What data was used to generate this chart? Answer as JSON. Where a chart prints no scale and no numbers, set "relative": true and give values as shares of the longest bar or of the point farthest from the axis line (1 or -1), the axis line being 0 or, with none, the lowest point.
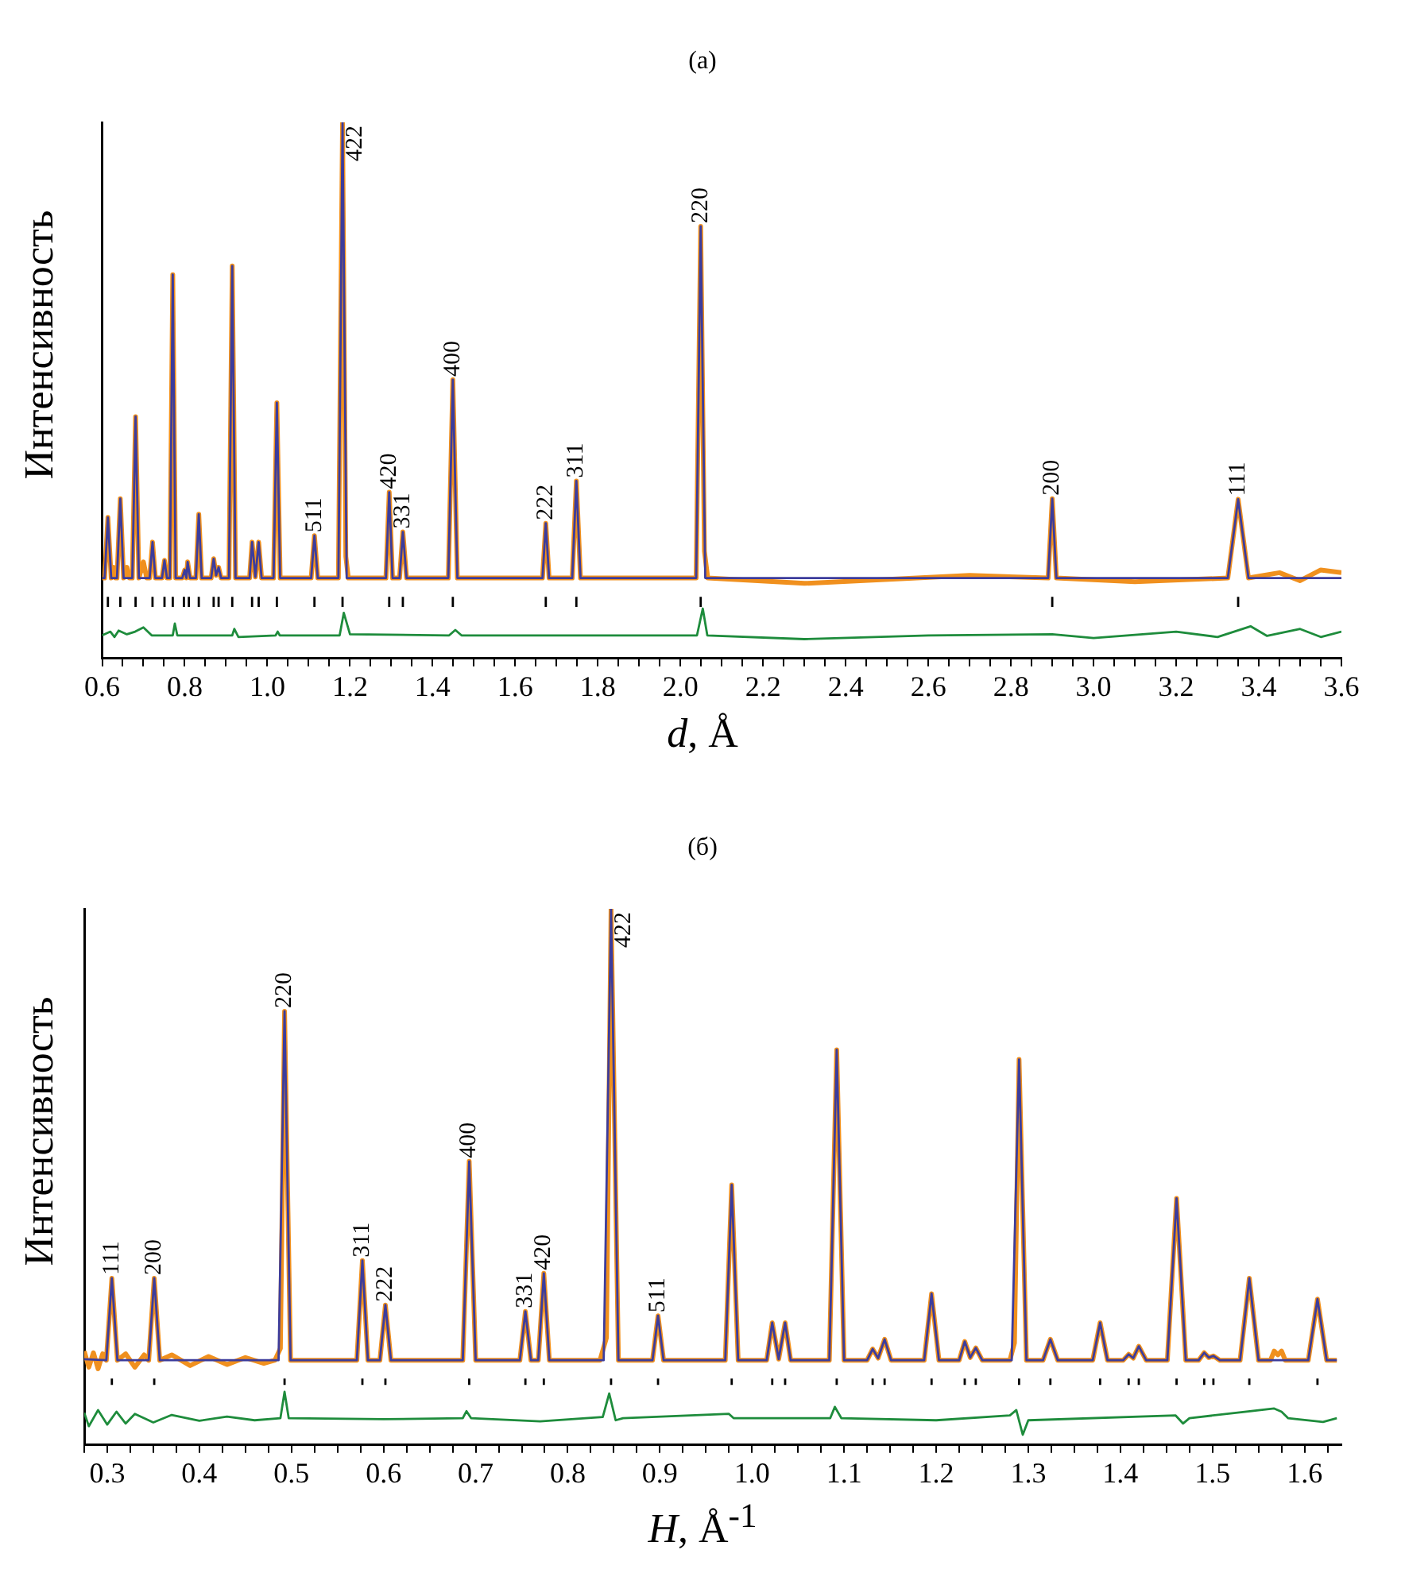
{
  "chart_data": [
    {
      "type": "line",
      "title": "(a)",
      "xlabel": "d, Å",
      "ylabel": "Интенсивность",
      "relative": true,
      "legend": false,
      "grid": false,
      "marker": "none",
      "line_style": "solid",
      "xlim": [
        0.6,
        3.6
      ],
      "xticks": [
        0.6,
        {
          "value": 0.65,
          "label": null
        },
        {
          "value": 0.7,
          "label": null
        },
        {
          "value": 0.75,
          "label": null
        },
        0.8,
        {
          "value": 0.85,
          "label": null
        },
        {
          "value": 0.9,
          "label": null
        },
        {
          "value": 0.95,
          "label": null
        },
        {
          "value": 1.0,
          "label": "1.0"
        },
        {
          "value": 1.05,
          "label": null
        },
        {
          "value": 1.1,
          "label": null
        },
        {
          "value": 1.15,
          "label": null
        },
        1.2,
        {
          "value": 1.25,
          "label": null
        },
        {
          "value": 1.3,
          "label": null
        },
        {
          "value": 1.35,
          "label": null
        },
        1.4,
        {
          "value": 1.45,
          "label": null
        },
        {
          "value": 1.5,
          "label": null
        },
        {
          "value": 1.55,
          "label": null
        },
        1.6,
        {
          "value": 1.65,
          "label": null
        },
        {
          "value": 1.7,
          "label": null
        },
        {
          "value": 1.75,
          "label": null
        },
        1.8,
        {
          "value": 1.85,
          "label": null
        },
        {
          "value": 1.9,
          "label": null
        },
        {
          "value": 1.95,
          "label": null
        },
        {
          "value": 2.0,
          "label": "2.0"
        },
        {
          "value": 2.05,
          "label": null
        },
        {
          "value": 2.1,
          "label": null
        },
        {
          "value": 2.15,
          "label": null
        },
        2.2,
        {
          "value": 2.25,
          "label": null
        },
        {
          "value": 2.3,
          "label": null
        },
        {
          "value": 2.35,
          "label": null
        },
        2.4,
        {
          "value": 2.45,
          "label": null
        },
        {
          "value": 2.5,
          "label": null
        },
        {
          "value": 2.55,
          "label": null
        },
        2.6,
        {
          "value": 2.65,
          "label": null
        },
        {
          "value": 2.7,
          "label": null
        },
        {
          "value": 2.75,
          "label": null
        },
        2.8,
        {
          "value": 2.85,
          "label": null
        },
        {
          "value": 2.9,
          "label": null
        },
        {
          "value": 2.95,
          "label": null
        },
        {
          "value": 3.0,
          "label": "3.0"
        },
        {
          "value": 3.05,
          "label": null
        },
        {
          "value": 3.1,
          "label": null
        },
        {
          "value": 3.15,
          "label": null
        },
        3.2,
        {
          "value": 3.25,
          "label": null
        },
        {
          "value": 3.3,
          "label": null
        },
        {
          "value": 3.35,
          "label": null
        },
        3.4,
        {
          "value": 3.45,
          "label": null
        },
        {
          "value": 3.5,
          "label": null
        },
        {
          "value": 3.55,
          "label": null
        },
        3.6
      ],
      "series": [
        {
          "type": "line",
          "color": "#f0901e",
          "x": [
            0.6,
            0.606,
            0.614,
            0.622,
            0.628,
            0.632,
            0.636,
            0.644,
            0.652,
            0.66,
            0.666,
            0.673,
            0.681,
            0.689,
            0.7,
            0.708,
            0.715,
            0.722,
            0.729,
            0.745,
            0.751,
            0.757,
            0.764,
            0.771,
            0.778,
            0.794,
            0.8,
            0.804,
            0.807,
            0.813,
            0.827,
            0.834,
            0.841,
            0.864,
            0.87,
            0.876,
            0.882,
            0.888,
            0.907,
            0.915,
            0.923,
            0.957,
            0.963,
            0.971,
            0.979,
            0.986,
            1.015,
            1.023,
            1.031,
            1.106,
            1.114,
            1.122,
            1.172,
            1.182,
            1.19,
            1.196,
            1.287,
            1.295,
            1.303,
            1.32,
            1.328,
            1.337,
            1.438,
            1.449,
            1.46,
            1.666,
            1.674,
            1.682,
            1.738,
            1.748,
            1.758,
            2.038,
            2.049,
            2.058,
            2.066,
            2.3,
            2.7,
            2.89,
            2.9,
            2.91,
            3.1,
            3.325,
            3.35,
            3.375,
            3.45,
            3.5,
            3.55,
            3.6
          ],
          "values": [
            0.15,
            0.15,
            0.263,
            0.15,
            0.17,
            0.15,
            0.15,
            0.298,
            0.15,
            0.17,
            0.15,
            0.15,
            0.451,
            0.15,
            0.18,
            0.15,
            0.15,
            0.217,
            0.15,
            0.15,
            0.183,
            0.15,
            0.15,
            0.716,
            0.15,
            0.15,
            0.165,
            0.15,
            0.18,
            0.15,
            0.15,
            0.269,
            0.15,
            0.15,
            0.186,
            0.155,
            0.17,
            0.15,
            0.15,
            0.732,
            0.15,
            0.15,
            0.217,
            0.152,
            0.217,
            0.15,
            0.15,
            0.477,
            0.15,
            0.15,
            0.229,
            0.15,
            0.15,
            1.0,
            0.19,
            0.15,
            0.15,
            0.31,
            0.15,
            0.15,
            0.236,
            0.15,
            0.15,
            0.52,
            0.15,
            0.15,
            0.252,
            0.15,
            0.15,
            0.331,
            0.15,
            0.15,
            0.806,
            0.2,
            0.15,
            0.14,
            0.155,
            0.15,
            0.298,
            0.15,
            0.143,
            0.15,
            0.297,
            0.15,
            0.16,
            0.145,
            0.165,
            0.16
          ]
        },
        {
          "type": "line",
          "color": "#3c3c9c",
          "x": [
            0.6,
            0.606,
            0.614,
            0.622,
            0.636,
            0.644,
            0.652,
            0.673,
            0.681,
            0.689,
            0.715,
            0.722,
            0.729,
            0.745,
            0.751,
            0.757,
            0.764,
            0.771,
            0.778,
            0.794,
            0.8,
            0.804,
            0.807,
            0.813,
            0.827,
            0.834,
            0.841,
            0.864,
            0.87,
            0.876,
            0.882,
            0.888,
            0.907,
            0.915,
            0.923,
            0.957,
            0.963,
            0.971,
            0.979,
            0.986,
            1.015,
            1.023,
            1.031,
            1.106,
            1.114,
            1.122,
            1.172,
            1.182,
            1.192,
            1.287,
            1.295,
            1.303,
            1.32,
            1.328,
            1.337,
            1.438,
            1.449,
            1.46,
            1.666,
            1.674,
            1.682,
            1.738,
            1.748,
            1.758,
            2.038,
            2.049,
            2.06,
            2.89,
            2.9,
            2.91,
            3.325,
            3.35,
            3.375,
            3.6
          ],
          "values": [
            0.15,
            0.15,
            0.263,
            0.15,
            0.15,
            0.298,
            0.15,
            0.15,
            0.451,
            0.15,
            0.15,
            0.217,
            0.15,
            0.15,
            0.183,
            0.15,
            0.15,
            0.716,
            0.15,
            0.15,
            0.165,
            0.15,
            0.18,
            0.15,
            0.15,
            0.269,
            0.15,
            0.15,
            0.186,
            0.155,
            0.17,
            0.15,
            0.15,
            0.732,
            0.15,
            0.15,
            0.217,
            0.152,
            0.217,
            0.15,
            0.15,
            0.477,
            0.15,
            0.15,
            0.229,
            0.15,
            0.15,
            1.0,
            0.15,
            0.15,
            0.31,
            0.15,
            0.15,
            0.236,
            0.15,
            0.15,
            0.52,
            0.15,
            0.15,
            0.252,
            0.15,
            0.15,
            0.331,
            0.15,
            0.15,
            0.806,
            0.15,
            0.15,
            0.298,
            0.15,
            0.15,
            0.297,
            0.15,
            0.15
          ]
        },
        {
          "type": "line",
          "color": "#1e8c3c",
          "x": [
            0.6,
            0.62,
            0.63,
            0.64,
            0.66,
            0.68,
            0.7,
            0.72,
            0.771,
            0.776,
            0.782,
            0.915,
            0.92,
            0.93,
            1.02,
            1.025,
            1.03,
            1.175,
            1.185,
            1.2,
            1.44,
            1.455,
            1.47,
            2.04,
            2.054,
            2.065,
            2.3,
            2.6,
            2.9,
            3.0,
            3.2,
            3.3,
            3.38,
            3.42,
            3.5,
            3.55,
            3.6
          ],
          "values": [
            0.043,
            0.05,
            0.04,
            0.052,
            0.045,
            0.05,
            0.058,
            0.043,
            0.043,
            0.065,
            0.043,
            0.043,
            0.055,
            0.04,
            0.043,
            0.05,
            0.043,
            0.043,
            0.085,
            0.045,
            0.043,
            0.053,
            0.043,
            0.043,
            0.093,
            0.043,
            0.036,
            0.043,
            0.045,
            0.038,
            0.05,
            0.04,
            0.06,
            0.042,
            0.055,
            0.04,
            0.05
          ]
        },
        {
          "type": "line",
          "color": "#000000",
          "x": [
            0.614,
            0.614,
            null,
            0.644,
            0.644,
            null,
            0.681,
            0.681,
            null,
            0.722,
            0.722,
            null,
            0.751,
            0.751,
            null,
            0.771,
            0.771,
            null,
            0.798,
            0.798,
            null,
            0.81,
            0.81,
            null,
            0.834,
            0.834,
            null,
            0.87,
            0.87,
            null,
            0.882,
            0.882,
            null,
            0.915,
            0.915,
            null,
            0.963,
            0.963,
            null,
            0.979,
            0.979,
            null,
            1.023,
            1.023,
            null,
            1.114,
            1.114,
            null,
            1.182,
            1.182,
            null,
            1.295,
            1.295,
            null,
            1.328,
            1.328,
            null,
            1.449,
            1.449,
            null,
            1.674,
            1.674,
            null,
            1.748,
            1.748,
            null,
            2.049,
            2.049,
            null,
            2.9,
            2.9,
            null,
            3.35,
            3.35
          ],
          "values": [
            0.096,
            0.115,
            null,
            0.096,
            0.115,
            null,
            0.096,
            0.115,
            null,
            0.096,
            0.115,
            null,
            0.096,
            0.115,
            null,
            0.096,
            0.115,
            null,
            0.096,
            0.115,
            null,
            0.096,
            0.115,
            null,
            0.096,
            0.115,
            null,
            0.096,
            0.115,
            null,
            0.096,
            0.115,
            null,
            0.096,
            0.115,
            null,
            0.096,
            0.115,
            null,
            0.096,
            0.115,
            null,
            0.096,
            0.115,
            null,
            0.096,
            0.115,
            null,
            0.096,
            0.115,
            null,
            0.096,
            0.115,
            null,
            0.096,
            0.115,
            null,
            0.096,
            0.115,
            null,
            0.096,
            0.115,
            null,
            0.096,
            0.115,
            null,
            0.096,
            0.115,
            null,
            0.096,
            0.115,
            null,
            0.096,
            0.115
          ]
        }
      ],
      "annotations": [
        {
          "text": "511",
          "x": 1.114,
          "y": 0.229
        },
        {
          "text": "422",
          "x": 1.182,
          "y": 1.0
        },
        {
          "text": "420",
          "x": 1.295,
          "y": 0.31
        },
        {
          "text": "331",
          "x": 1.328,
          "y": 0.236
        },
        {
          "text": "400",
          "x": 1.449,
          "y": 0.52
        },
        {
          "text": "222",
          "x": 1.674,
          "y": 0.252
        },
        {
          "text": "311",
          "x": 1.748,
          "y": 0.331
        },
        {
          "text": "220",
          "x": 2.049,
          "y": 0.806
        },
        {
          "text": "200",
          "x": 2.9,
          "y": 0.298
        },
        {
          "text": "111",
          "x": 3.35,
          "y": 0.297
        }
      ]
    },
    {
      "type": "line",
      "title": "(б)",
      "xlabel": "H, Å$^{-1}$",
      "ylabel": "Интенсивность",
      "relative": true,
      "legend": false,
      "grid": false,
      "marker": "none",
      "line_style": "solid",
      "xlim": [
        0.275,
        1.64
      ],
      "xticks": [
        {
          "value": 0.275,
          "label": null
        },
        0.3,
        {
          "value": 0.325,
          "label": null
        },
        {
          "value": 0.35,
          "label": null
        },
        {
          "value": 0.375,
          "label": null
        },
        0.4,
        {
          "value": 0.425,
          "label": null
        },
        {
          "value": 0.45,
          "label": null
        },
        {
          "value": 0.475,
          "label": null
        },
        0.5,
        {
          "value": 0.525,
          "label": null
        },
        {
          "value": 0.55,
          "label": null
        },
        {
          "value": 0.575,
          "label": null
        },
        0.6,
        {
          "value": 0.625,
          "label": null
        },
        {
          "value": 0.65,
          "label": null
        },
        {
          "value": 0.675,
          "label": null
        },
        0.7,
        {
          "value": 0.725,
          "label": null
        },
        {
          "value": 0.75,
          "label": null
        },
        {
          "value": 0.775,
          "label": null
        },
        0.8,
        {
          "value": 0.825,
          "label": null
        },
        {
          "value": 0.85,
          "label": null
        },
        {
          "value": 0.875,
          "label": null
        },
        0.9,
        {
          "value": 0.925,
          "label": null
        },
        {
          "value": 0.95,
          "label": null
        },
        {
          "value": 0.975,
          "label": null
        },
        {
          "value": 1.0,
          "label": "1.0"
        },
        {
          "value": 1.025,
          "label": null
        },
        {
          "value": 1.05,
          "label": null
        },
        {
          "value": 1.075,
          "label": null
        },
        1.1,
        {
          "value": 1.125,
          "label": null
        },
        {
          "value": 1.15,
          "label": null
        },
        {
          "value": 1.175,
          "label": null
        },
        1.2,
        {
          "value": 1.225,
          "label": null
        },
        {
          "value": 1.25,
          "label": null
        },
        {
          "value": 1.275,
          "label": null
        },
        1.3,
        {
          "value": 1.325,
          "label": null
        },
        {
          "value": 1.35,
          "label": null
        },
        {
          "value": 1.375,
          "label": null
        },
        1.4,
        {
          "value": 1.425,
          "label": null
        },
        {
          "value": 1.45,
          "label": null
        },
        {
          "value": 1.475,
          "label": null
        },
        1.5,
        {
          "value": 1.525,
          "label": null
        },
        {
          "value": 1.55,
          "label": null
        },
        {
          "value": 1.575,
          "label": null
        },
        1.6,
        {
          "value": 1.625,
          "label": null
        }
      ],
      "series": [
        {
          "type": "line",
          "color": "#f0901e",
          "x": [
            0.275,
            0.28,
            0.285,
            0.29,
            0.295,
            0.299,
            0.305,
            0.311,
            0.32,
            0.33,
            0.34,
            0.345,
            0.351,
            0.357,
            0.37,
            0.39,
            0.41,
            0.43,
            0.45,
            0.47,
            0.482,
            0.488,
            0.4925,
            0.499,
            0.571,
            0.577,
            0.583,
            0.596,
            0.602,
            0.608,
            0.686,
            0.693,
            0.7,
            0.748,
            0.754,
            0.76,
            0.768,
            0.774,
            0.78,
            0.835,
            0.842,
            0.847,
            0.855,
            0.892,
            0.898,
            0.904,
            0.971,
            0.978,
            0.985,
            1.016,
            1.022,
            1.029,
            1.036,
            1.042,
            1.084,
            1.092,
            1.1,
            1.125,
            1.131,
            1.137,
            1.144,
            1.151,
            1.187,
            1.195,
            1.203,
            1.225,
            1.231,
            1.237,
            1.243,
            1.25,
            1.28,
            1.285,
            1.29,
            1.298,
            1.316,
            1.324,
            1.332,
            1.37,
            1.378,
            1.386,
            1.403,
            1.409,
            1.414,
            1.42,
            1.428,
            1.451,
            1.461,
            1.471,
            1.485,
            1.491,
            1.496,
            1.501,
            1.508,
            1.53,
            1.54,
            1.55,
            1.563,
            1.567,
            1.571,
            1.575,
            1.579,
            1.604,
            1.614,
            1.624,
            1.635
          ],
          "values": [
            0.175,
            0.145,
            0.172,
            0.142,
            0.17,
            0.158,
            0.311,
            0.158,
            0.17,
            0.145,
            0.168,
            0.158,
            0.311,
            0.158,
            0.168,
            0.148,
            0.165,
            0.15,
            0.163,
            0.152,
            0.158,
            0.18,
            0.809,
            0.158,
            0.158,
            0.344,
            0.158,
            0.158,
            0.261,
            0.158,
            0.158,
            0.529,
            0.158,
            0.158,
            0.249,
            0.158,
            0.158,
            0.32,
            0.158,
            0.158,
            0.2,
            1.0,
            0.158,
            0.158,
            0.241,
            0.158,
            0.158,
            0.485,
            0.158,
            0.158,
            0.228,
            0.16,
            0.228,
            0.158,
            0.158,
            0.737,
            0.158,
            0.158,
            0.179,
            0.162,
            0.197,
            0.158,
            0.158,
            0.282,
            0.158,
            0.158,
            0.193,
            0.163,
            0.181,
            0.158,
            0.158,
            0.19,
            0.719,
            0.158,
            0.158,
            0.197,
            0.158,
            0.158,
            0.228,
            0.158,
            0.158,
            0.169,
            0.162,
            0.184,
            0.158,
            0.158,
            0.46,
            0.158,
            0.158,
            0.172,
            0.163,
            0.166,
            0.158,
            0.158,
            0.311,
            0.158,
            0.158,
            0.175,
            0.168,
            0.175,
            0.158,
            0.158,
            0.272,
            0.158,
            0.158
          ]
        },
        {
          "type": "line",
          "color": "#3c3c9c",
          "x": [
            0.275,
            0.299,
            0.305,
            0.311,
            0.345,
            0.351,
            0.357,
            0.486,
            0.4925,
            0.499,
            0.571,
            0.577,
            0.583,
            0.596,
            0.602,
            0.608,
            0.686,
            0.693,
            0.7,
            0.748,
            0.754,
            0.76,
            0.768,
            0.774,
            0.78,
            0.839,
            0.847,
            0.855,
            0.892,
            0.898,
            0.904,
            0.971,
            0.978,
            0.985,
            1.016,
            1.022,
            1.029,
            1.036,
            1.042,
            1.084,
            1.092,
            1.1,
            1.125,
            1.131,
            1.137,
            1.144,
            1.151,
            1.187,
            1.195,
            1.203,
            1.225,
            1.231,
            1.237,
            1.243,
            1.25,
            1.282,
            1.29,
            1.298,
            1.316,
            1.324,
            1.332,
            1.37,
            1.378,
            1.386,
            1.403,
            1.409,
            1.414,
            1.42,
            1.428,
            1.451,
            1.461,
            1.471,
            1.485,
            1.491,
            1.496,
            1.501,
            1.508,
            1.53,
            1.54,
            1.55,
            1.604,
            1.614,
            1.624,
            1.635
          ],
          "values": [
            0.16,
            0.158,
            0.311,
            0.158,
            0.158,
            0.311,
            0.158,
            0.158,
            0.809,
            0.158,
            0.158,
            0.344,
            0.158,
            0.158,
            0.261,
            0.158,
            0.158,
            0.529,
            0.158,
            0.158,
            0.249,
            0.158,
            0.158,
            0.32,
            0.158,
            0.158,
            1.0,
            0.158,
            0.158,
            0.241,
            0.158,
            0.158,
            0.485,
            0.158,
            0.158,
            0.228,
            0.16,
            0.228,
            0.158,
            0.158,
            0.737,
            0.158,
            0.158,
            0.179,
            0.162,
            0.197,
            0.158,
            0.158,
            0.282,
            0.158,
            0.158,
            0.193,
            0.163,
            0.181,
            0.158,
            0.158,
            0.719,
            0.158,
            0.158,
            0.197,
            0.158,
            0.158,
            0.228,
            0.158,
            0.158,
            0.169,
            0.162,
            0.184,
            0.158,
            0.158,
            0.46,
            0.158,
            0.158,
            0.172,
            0.163,
            0.166,
            0.158,
            0.158,
            0.311,
            0.158,
            0.158,
            0.272,
            0.158,
            0.158
          ]
        },
        {
          "type": "line",
          "color": "#1e8c3c",
          "x": [
            0.275,
            0.28,
            0.29,
            0.3,
            0.31,
            0.32,
            0.33,
            0.35,
            0.37,
            0.4,
            0.43,
            0.46,
            0.488,
            0.4925,
            0.497,
            0.6,
            0.686,
            0.69,
            0.695,
            0.77,
            0.838,
            0.845,
            0.852,
            0.86,
            0.975,
            0.98,
            1.085,
            1.09,
            1.097,
            1.2,
            1.28,
            1.287,
            1.294,
            1.3,
            1.46,
            1.468,
            1.475,
            1.567,
            1.575,
            1.582,
            1.62,
            1.635
          ],
          "values": [
            0.06,
            0.035,
            0.065,
            0.038,
            0.062,
            0.04,
            0.058,
            0.042,
            0.056,
            0.045,
            0.053,
            0.046,
            0.05,
            0.099,
            0.05,
            0.048,
            0.05,
            0.063,
            0.05,
            0.044,
            0.052,
            0.096,
            0.046,
            0.05,
            0.058,
            0.05,
            0.05,
            0.071,
            0.05,
            0.046,
            0.055,
            0.065,
            0.019,
            0.046,
            0.055,
            0.04,
            0.05,
            0.068,
            0.062,
            0.05,
            0.043,
            0.05
          ]
        },
        {
          "type": "line",
          "color": "#000000",
          "x": [
            0.305,
            0.305,
            null,
            0.351,
            0.351,
            null,
            0.4925,
            0.4925,
            null,
            0.577,
            0.577,
            null,
            0.602,
            0.602,
            null,
            0.693,
            0.693,
            null,
            0.754,
            0.754,
            null,
            0.774,
            0.774,
            null,
            0.847,
            0.847,
            null,
            0.898,
            0.898,
            null,
            0.978,
            0.978,
            null,
            1.022,
            1.022,
            null,
            1.036,
            1.036,
            null,
            1.092,
            1.092,
            null,
            1.131,
            1.131,
            null,
            1.144,
            1.144,
            null,
            1.195,
            1.195,
            null,
            1.231,
            1.231,
            null,
            1.243,
            1.243,
            null,
            1.29,
            1.29,
            null,
            1.324,
            1.324,
            null,
            1.378,
            1.378,
            null,
            1.409,
            1.409,
            null,
            1.42,
            1.42,
            null,
            1.461,
            1.461,
            null,
            1.491,
            1.491,
            null,
            1.501,
            1.501,
            null,
            1.54,
            1.54,
            null,
            1.614,
            1.614
          ],
          "values": [
            0.112,
            0.124,
            null,
            0.112,
            0.124,
            null,
            0.112,
            0.124,
            null,
            0.112,
            0.124,
            null,
            0.112,
            0.124,
            null,
            0.112,
            0.124,
            null,
            0.112,
            0.124,
            null,
            0.112,
            0.124,
            null,
            0.112,
            0.124,
            null,
            0.112,
            0.124,
            null,
            0.112,
            0.124,
            null,
            0.112,
            0.124,
            null,
            0.112,
            0.124,
            null,
            0.112,
            0.124,
            null,
            0.112,
            0.124,
            null,
            0.112,
            0.124,
            null,
            0.112,
            0.124,
            null,
            0.112,
            0.124,
            null,
            0.112,
            0.124,
            null,
            0.112,
            0.124,
            null,
            0.112,
            0.124,
            null,
            0.112,
            0.124,
            null,
            0.112,
            0.124,
            null,
            0.112,
            0.124,
            null,
            0.112,
            0.124,
            null,
            0.112,
            0.124,
            null,
            0.112,
            0.124,
            null,
            0.112,
            0.124,
            null,
            0.112,
            0.124
          ]
        }
      ],
      "annotations": [
        {
          "text": "111",
          "x": 0.305,
          "y": 0.311
        },
        {
          "text": "200",
          "x": 0.351,
          "y": 0.311
        },
        {
          "text": "220",
          "x": 0.4925,
          "y": 0.809
        },
        {
          "text": "311",
          "x": 0.577,
          "y": 0.344
        },
        {
          "text": "222",
          "x": 0.602,
          "y": 0.261
        },
        {
          "text": "400",
          "x": 0.693,
          "y": 0.529
        },
        {
          "text": "331",
          "x": 0.754,
          "y": 0.249
        },
        {
          "text": "420",
          "x": 0.774,
          "y": 0.32
        },
        {
          "text": "422",
          "x": 0.847,
          "y": 1.0
        },
        {
          "text": "511",
          "x": 0.898,
          "y": 0.241
        }
      ]
    }
  ]
}
